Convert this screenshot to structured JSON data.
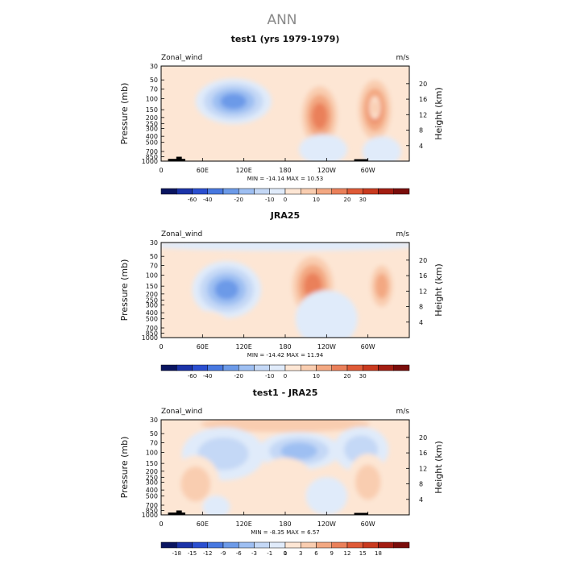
{
  "figure": {
    "title": "ANN",
    "colors": {
      "title": "#8a8a8a",
      "text": "#111111",
      "land": "#000000"
    }
  },
  "chart_data": [
    {
      "type": "heatmap",
      "title": "test1 (yrs 1979-1979)",
      "variable_label": "Zonal_wind",
      "units": "m/s",
      "stats": "MIN = -14.14   MAX =  10.53",
      "xlabel": "",
      "ylabel_left": "Pressure (mb)",
      "ylabel_right": "Height (km)",
      "x_ticks": [
        "0",
        "60E",
        "120E",
        "180",
        "120W",
        "60W"
      ],
      "x_tick_lons": [
        0,
        60,
        120,
        180,
        240,
        300
      ],
      "xlim": [
        0,
        360
      ],
      "y_ticks": [
        "30",
        "50",
        "70",
        "100",
        "150",
        "200",
        "250",
        "300",
        "400",
        "500",
        "700",
        "850",
        "1000"
      ],
      "y_tick_values": [
        30,
        50,
        70,
        100,
        150,
        200,
        250,
        300,
        400,
        500,
        700,
        850,
        1000
      ],
      "ylim": [
        1000,
        30
      ],
      "height_ticks": [
        "4",
        "8",
        "12",
        "16",
        "20"
      ],
      "height_tick_km": [
        4,
        8,
        12,
        16,
        20
      ],
      "colorbar_labels": [
        "-60",
        "-40",
        "-20",
        "-10",
        "0",
        "10",
        "20",
        "30"
      ],
      "colorbar_colors": [
        "#0a1560",
        "#1b33a8",
        "#2a4fd0",
        "#4878e0",
        "#6c9ae8",
        "#9ebff2",
        "#c4d8f6",
        "#e0ebfa",
        "#fde6d4",
        "#f9cdb0",
        "#f3a882",
        "#ea805a",
        "#df5a37",
        "#c93a1f",
        "#a31d12",
        "#7a0d0b"
      ],
      "blobs": [
        {
          "lon": 105,
          "p": 110,
          "rx": 55,
          "ry": 0.12,
          "v": -12
        },
        {
          "lon": 230,
          "p": 190,
          "rx": 33,
          "ry": 0.2,
          "v": 12
        },
        {
          "lon": 310,
          "p": 150,
          "rx": 30,
          "ry": 0.2,
          "v": 11
        },
        {
          "lon": 310,
          "p": 140,
          "rx": 8,
          "ry": 0.06,
          "v": 5
        },
        {
          "lon": 235,
          "p": 650,
          "rx": 35,
          "ry": 0.08,
          "v": -3
        },
        {
          "lon": 320,
          "p": 700,
          "rx": 28,
          "ry": 0.08,
          "v": -3
        },
        {
          "lon": 60,
          "p": 600,
          "rx": 40,
          "ry": 0.12,
          "v": 3
        },
        {
          "lon": 20,
          "p": 330,
          "rx": 15,
          "ry": 0.08,
          "v": 3
        }
      ],
      "land": [
        {
          "lon0": 10,
          "lon1": 35,
          "p_top": 920
        },
        {
          "lon0": 22,
          "lon1": 30,
          "p_top": 850
        },
        {
          "lon0": 280,
          "lon1": 300,
          "p_top": 930
        }
      ]
    },
    {
      "type": "heatmap",
      "title": "JRA25",
      "variable_label": "Zonal_wind",
      "units": "m/s",
      "stats": "MIN = -14.42   MAX =  11.94",
      "xlabel": "",
      "ylabel_left": "Pressure (mb)",
      "ylabel_right": "Height (km)",
      "x_ticks": [
        "0",
        "60E",
        "120E",
        "180",
        "120W",
        "60W"
      ],
      "x_tick_lons": [
        0,
        60,
        120,
        180,
        240,
        300
      ],
      "xlim": [
        0,
        360
      ],
      "y_ticks": [
        "30",
        "50",
        "70",
        "100",
        "150",
        "200",
        "250",
        "300",
        "400",
        "500",
        "700",
        "850",
        "1000"
      ],
      "y_tick_values": [
        30,
        50,
        70,
        100,
        150,
        200,
        250,
        300,
        400,
        500,
        700,
        850,
        1000
      ],
      "ylim": [
        1000,
        30
      ],
      "height_ticks": [
        "4",
        "8",
        "12",
        "16",
        "20"
      ],
      "height_tick_km": [
        4,
        8,
        12,
        16,
        20
      ],
      "colorbar_labels": [
        "-60",
        "-40",
        "-20",
        "-10",
        "0",
        "10",
        "20",
        "30"
      ],
      "colorbar_colors": [
        "#0a1560",
        "#1b33a8",
        "#2a4fd0",
        "#4878e0",
        "#6c9ae8",
        "#9ebff2",
        "#c4d8f6",
        "#e0ebfa",
        "#fde6d4",
        "#f9cdb0",
        "#f3a882",
        "#ea805a",
        "#df5a37",
        "#c93a1f",
        "#a31d12",
        "#7a0d0b"
      ],
      "blobs": [
        {
          "lon": 95,
          "p": 170,
          "rx": 50,
          "ry": 0.15,
          "v": -12
        },
        {
          "lon": 220,
          "p": 150,
          "rx": 38,
          "ry": 0.2,
          "v": 12
        },
        {
          "lon": 320,
          "p": 150,
          "rx": 22,
          "ry": 0.15,
          "v": 8
        },
        {
          "lon": 180,
          "p": 33,
          "rx": 200,
          "ry": 0.03,
          "v": -4
        },
        {
          "lon": 240,
          "p": 500,
          "rx": 45,
          "ry": 0.15,
          "v": -4
        },
        {
          "lon": 60,
          "p": 650,
          "rx": 40,
          "ry": 0.08,
          "v": 3
        }
      ],
      "land": []
    },
    {
      "type": "heatmap",
      "title": "test1 - JRA25",
      "variable_label": "Zonal_wind",
      "units": "m/s",
      "stats": "MIN = -8.35   MAX =  6.57",
      "xlabel": "",
      "ylabel_left": "Pressure (mb)",
      "ylabel_right": "Height (km)",
      "x_ticks": [
        "0",
        "60E",
        "120E",
        "180",
        "120W",
        "60W"
      ],
      "x_tick_lons": [
        0,
        60,
        120,
        180,
        240,
        300
      ],
      "xlim": [
        0,
        360
      ],
      "y_ticks": [
        "30",
        "50",
        "70",
        "100",
        "150",
        "200",
        "250",
        "300",
        "400",
        "500",
        "700",
        "850",
        "1000"
      ],
      "y_tick_values": [
        30,
        50,
        70,
        100,
        150,
        200,
        250,
        300,
        400,
        500,
        700,
        850,
        1000
      ],
      "ylim": [
        1000,
        30
      ],
      "height_ticks": [
        "4",
        "8",
        "12",
        "16",
        "20"
      ],
      "height_tick_km": [
        4,
        8,
        12,
        16,
        20
      ],
      "colorbar_labels": [
        "-18",
        "-15",
        "-12",
        "-9",
        "-6",
        "-3",
        "-1",
        "0",
        "1",
        "3",
        "6",
        "9",
        "12",
        "15",
        "18"
      ],
      "colorbar_colors": [
        "#0a1560",
        "#1b33a8",
        "#2a4fd0",
        "#4878e0",
        "#6c9ae8",
        "#9ebff2",
        "#c4d8f6",
        "#e0ebfa",
        "#fde6d4",
        "#f9cdb0",
        "#f3a882",
        "#ea805a",
        "#df5a37",
        "#c93a1f",
        "#a31d12",
        "#7a0d0b"
      ],
      "blobs": [
        {
          "lon": 180,
          "p": 35,
          "rx": 200,
          "ry": 0.07,
          "v": 6
        },
        {
          "lon": 200,
          "p": 95,
          "rx": 60,
          "ry": 0.1,
          "v": -8
        },
        {
          "lon": 90,
          "p": 105,
          "rx": 60,
          "ry": 0.14,
          "v": -5
        },
        {
          "lon": 290,
          "p": 90,
          "rx": 40,
          "ry": 0.12,
          "v": -6
        },
        {
          "lon": 300,
          "p": 300,
          "rx": 30,
          "ry": 0.15,
          "v": 5
        },
        {
          "lon": 50,
          "p": 320,
          "rx": 35,
          "ry": 0.15,
          "v": 5
        },
        {
          "lon": 180,
          "p": 280,
          "rx": 40,
          "ry": 0.12,
          "v": 2
        },
        {
          "lon": 80,
          "p": 750,
          "rx": 20,
          "ry": 0.06,
          "v": -3
        },
        {
          "lon": 240,
          "p": 500,
          "rx": 30,
          "ry": 0.1,
          "v": -3
        }
      ],
      "land": [
        {
          "lon0": 10,
          "lon1": 35,
          "p_top": 920
        },
        {
          "lon0": 22,
          "lon1": 30,
          "p_top": 850
        },
        {
          "lon0": 280,
          "lon1": 300,
          "p_top": 930
        }
      ]
    }
  ]
}
